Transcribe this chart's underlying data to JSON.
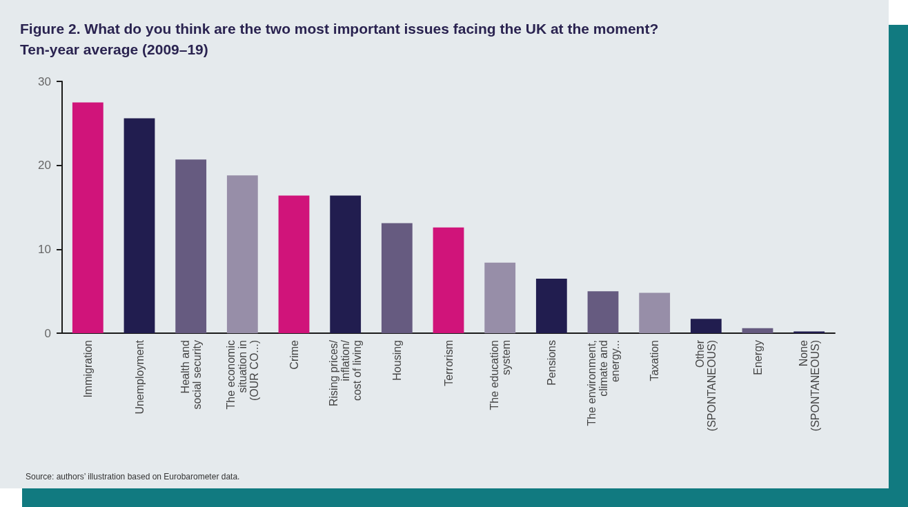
{
  "chart_data": {
    "type": "bar",
    "title": "Figure 2. What do you think are the two most important issues facing the UK at the moment?",
    "subtitle": "Ten-year average (2009–19)",
    "categories": [
      "Immigration",
      "Unemployment",
      "Health and\nsocial security",
      "The economic\nsituation in\n(OUR CO...)",
      "Crime",
      "Rising prices/\ninflation/\ncost of living",
      "Housing",
      "Terrorism",
      "The education\nsystem",
      "Pensions",
      "The environment,\nclimate and\nenergy...",
      "Taxation",
      "Other\n(SPONTANEOUS)",
      "Energy",
      "None\n(SPONTANEOUS)"
    ],
    "values": [
      27.5,
      25.6,
      20.7,
      18.8,
      16.4,
      16.4,
      13.1,
      12.6,
      8.4,
      6.5,
      5.0,
      4.8,
      1.7,
      0.6,
      0.2
    ],
    "colors": [
      "#d0147a",
      "#211d4f",
      "#665b80",
      "#978ea8",
      "#d0147a",
      "#211d4f",
      "#665b80",
      "#d0147a",
      "#978ea8",
      "#211d4f",
      "#665b80",
      "#978ea8",
      "#211d4f",
      "#665b80",
      "#211d4f"
    ],
    "ylim": [
      0,
      30
    ],
    "yticks": [
      0,
      10,
      20,
      30
    ],
    "grid": false,
    "annotations": [
      "Source: authors’ illustration based on Eurobarometer data."
    ]
  }
}
